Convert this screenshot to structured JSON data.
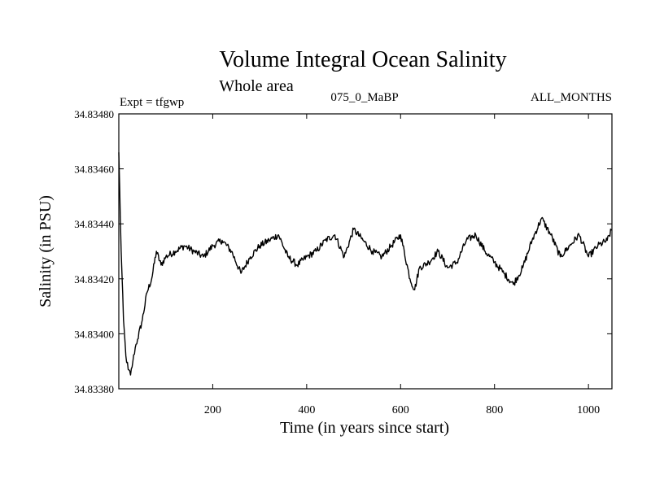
{
  "chart_data": {
    "type": "line",
    "title": "Volume Integral Ocean Salinity",
    "subtitle": "Whole area",
    "left_note": "Expt = tfgwp",
    "center_note": "075_0_MaBP",
    "right_note": "ALL_MONTHS",
    "xlabel": "Time (in years since start)",
    "ylabel": "Salinity (in PSU)",
    "xlim": [
      0,
      1050
    ],
    "ylim": [
      34.8338,
      34.8348
    ],
    "x_ticks": [
      200,
      400,
      600,
      800,
      1000
    ],
    "x_tick_labels": [
      "200",
      "400",
      "600",
      "800",
      "1000"
    ],
    "y_ticks": [
      34.8338,
      34.834,
      34.8342,
      34.8344,
      34.8346,
      34.8348
    ],
    "y_tick_labels": [
      "34.83380",
      "34.83400",
      "34.83420",
      "34.83440",
      "34.83460",
      "34.83480"
    ],
    "series": [
      {
        "name": "salinity",
        "color": "#000000",
        "x": [
          0,
          5,
          10,
          15,
          20,
          25,
          30,
          35,
          40,
          50,
          60,
          70,
          80,
          90,
          100,
          120,
          140,
          160,
          180,
          200,
          220,
          240,
          260,
          280,
          300,
          320,
          340,
          360,
          380,
          400,
          420,
          440,
          460,
          480,
          500,
          520,
          540,
          560,
          580,
          600,
          620,
          630,
          640,
          660,
          680,
          700,
          720,
          740,
          760,
          780,
          800,
          820,
          840,
          860,
          880,
          900,
          920,
          940,
          960,
          980,
          1000,
          1020,
          1040,
          1050
        ],
        "y": [
          34.83466,
          34.8343,
          34.83405,
          34.83392,
          34.83387,
          34.83385,
          34.8339,
          34.83395,
          34.83398,
          34.83405,
          34.83415,
          34.8342,
          34.8343,
          34.83425,
          34.83428,
          34.8343,
          34.83432,
          34.8343,
          34.83428,
          34.83432,
          34.83434,
          34.8343,
          34.83422,
          34.83428,
          34.83432,
          34.83434,
          34.83436,
          34.83428,
          34.83425,
          34.83428,
          34.8343,
          34.83434,
          34.83436,
          34.83428,
          34.83438,
          34.83434,
          34.8343,
          34.83428,
          34.83432,
          34.83436,
          34.8342,
          34.83416,
          34.83424,
          34.83426,
          34.8343,
          34.83424,
          34.83426,
          34.83434,
          34.83436,
          34.8343,
          34.83426,
          34.83422,
          34.83418,
          34.83424,
          34.83434,
          34.83442,
          34.83436,
          34.83428,
          34.83432,
          34.83436,
          34.83428,
          34.83432,
          34.83434,
          34.83438
        ]
      }
    ]
  }
}
